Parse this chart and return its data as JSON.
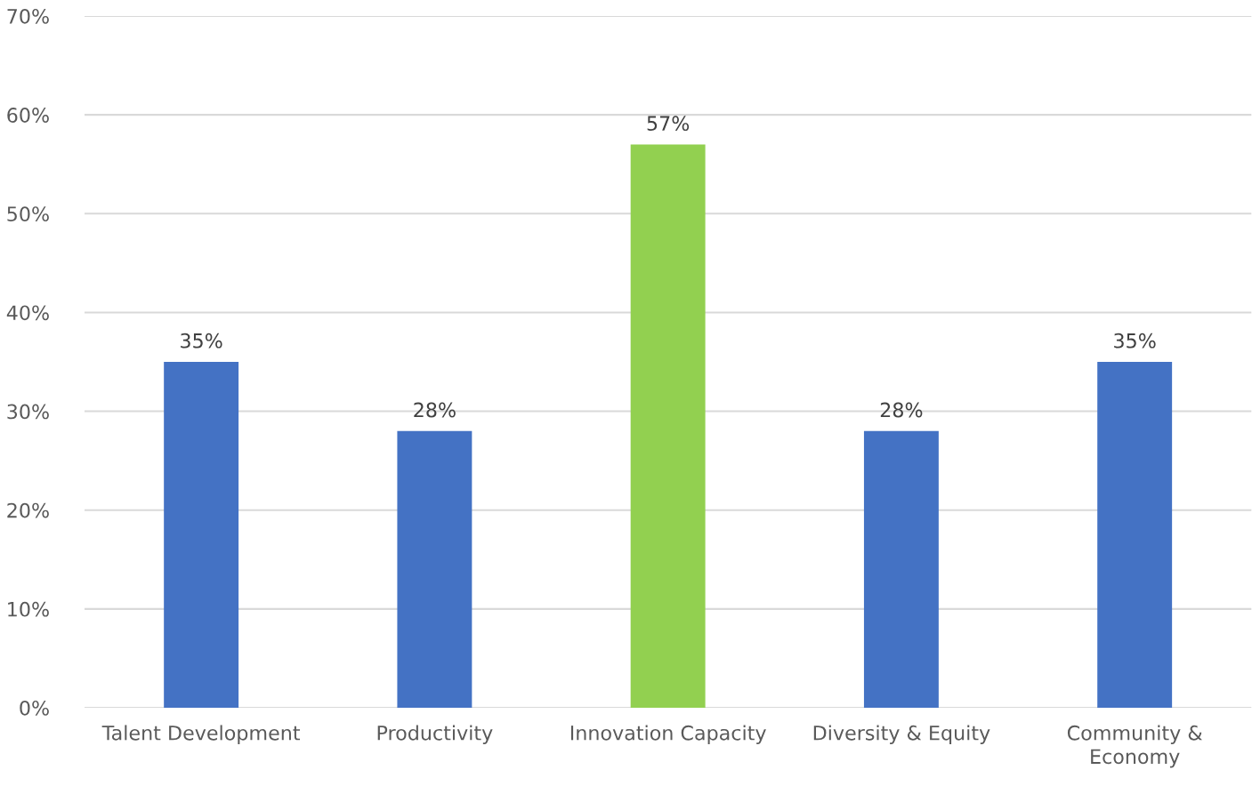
{
  "chart_data": {
    "type": "bar",
    "categories": [
      "Talent Development",
      "Productivity",
      "Innovation Capacity",
      "Diversity & Equity",
      "Community &\nEconomy"
    ],
    "values": [
      35,
      28,
      57,
      28,
      35
    ],
    "colors": [
      "#4472c4",
      "#4472c4",
      "#92d050",
      "#4472c4",
      "#4472c4"
    ],
    "value_labels": [
      "35%",
      "28%",
      "57%",
      "28%",
      "35%"
    ],
    "ylim": [
      0,
      70
    ],
    "yticks": [
      {
        "value": 0,
        "label": "0%"
      },
      {
        "value": 10,
        "label": "10%"
      },
      {
        "value": 20,
        "label": "20%"
      },
      {
        "value": 30,
        "label": "30%"
      },
      {
        "value": 40,
        "label": "40%"
      },
      {
        "value": 50,
        "label": "50%"
      },
      {
        "value": 60,
        "label": "60%"
      },
      {
        "value": 70,
        "label": "70%"
      }
    ],
    "grid": "y",
    "legend": false
  }
}
